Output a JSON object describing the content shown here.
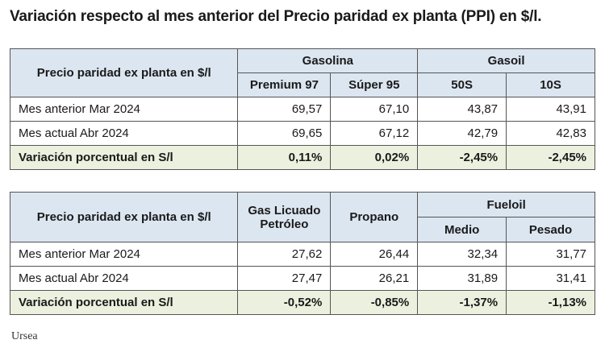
{
  "title": "Variación respecto al mes anterior del Precio paridad ex planta (PPI) en $/l.",
  "table1": {
    "corner": "Precio paridad ex planta en $/l",
    "groups": [
      "Gasolina",
      "Gasoil"
    ],
    "cols": [
      "Premium 97",
      "Súper 95",
      "50S",
      "10S"
    ],
    "rows": [
      {
        "label": "Mes anterior Mar 2024",
        "values": [
          "69,57",
          "67,10",
          "43,87",
          "43,91"
        ]
      },
      {
        "label": "Mes actual Abr 2024",
        "values": [
          "69,65",
          "67,12",
          "42,79",
          "42,83"
        ]
      },
      {
        "label": "Variación porcentual en S/l",
        "values": [
          "0,11%",
          "0,02%",
          "-2,45%",
          "-2,45%"
        ]
      }
    ]
  },
  "table2": {
    "corner": "Precio paridad ex planta en $/l",
    "cols": [
      "Gas Licuado Petróleo",
      "Propano",
      "Medio",
      "Pesado"
    ],
    "group": "Fueloil",
    "rows": [
      {
        "label": "Mes anterior Mar 2024",
        "values": [
          "27,62",
          "26,44",
          "32,34",
          "31,77"
        ]
      },
      {
        "label": "Mes actual Abr 2024",
        "values": [
          "27,47",
          "26,21",
          "31,89",
          "31,41"
        ]
      },
      {
        "label": "Variación porcentual en S/l",
        "values": [
          "-0,52%",
          "-0,85%",
          "-1,37%",
          "-1,13%"
        ]
      }
    ]
  },
  "source": "Ursea",
  "colors": {
    "header": "#dce6f1",
    "variation": "#ebf1de"
  }
}
